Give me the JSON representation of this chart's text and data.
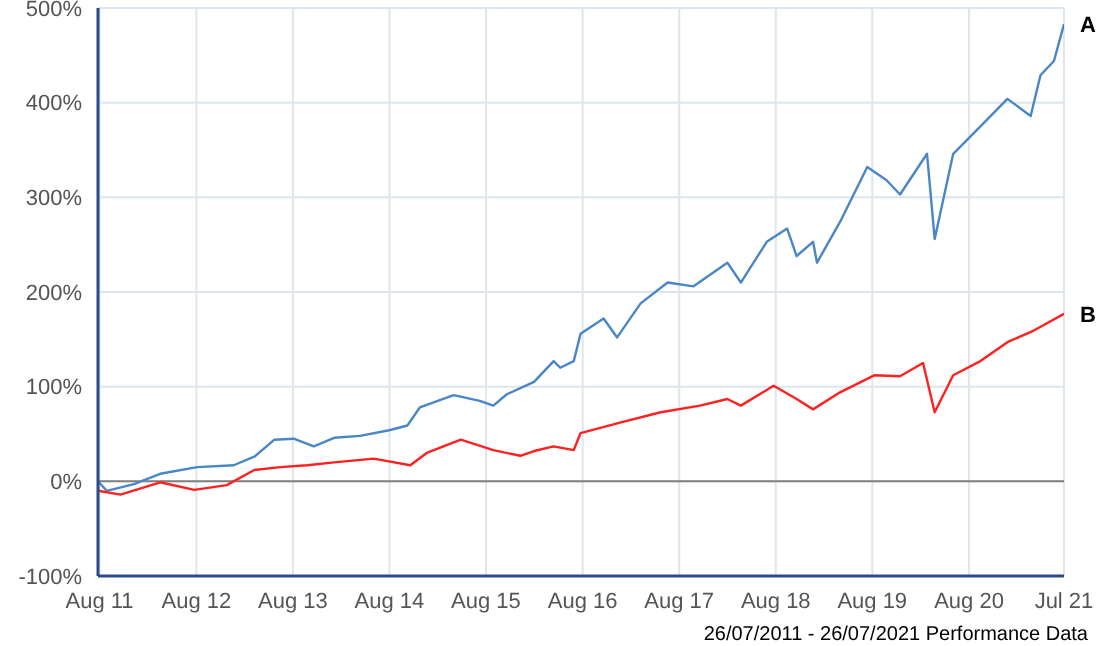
{
  "chart_data": {
    "type": "line",
    "xlim": [
      "2011-07-26",
      "2021-07-26"
    ],
    "xticks": [
      {
        "value": "2011-08-01",
        "label": "Aug 11"
      },
      {
        "value": "2012-08-01",
        "label": "Aug 12"
      },
      {
        "value": "2013-08-01",
        "label": "Aug 13"
      },
      {
        "value": "2014-08-01",
        "label": "Aug 14"
      },
      {
        "value": "2015-08-01",
        "label": "Aug 15"
      },
      {
        "value": "2016-08-01",
        "label": "Aug 16"
      },
      {
        "value": "2017-08-01",
        "label": "Aug 17"
      },
      {
        "value": "2018-08-01",
        "label": "Aug 18"
      },
      {
        "value": "2019-08-01",
        "label": "Aug 19"
      },
      {
        "value": "2020-08-01",
        "label": "Aug 20"
      },
      {
        "value": "2021-07-26",
        "label": "Jul 21"
      }
    ],
    "ylim": [
      -100,
      500
    ],
    "yticks": [
      {
        "value": -100,
        "label": "-100%"
      },
      {
        "value": 0,
        "label": "0%"
      },
      {
        "value": 100,
        "label": "100%"
      },
      {
        "value": 200,
        "label": "200%"
      },
      {
        "value": 300,
        "label": "300%"
      },
      {
        "value": 400,
        "label": "400%"
      },
      {
        "value": 500,
        "label": "500%"
      }
    ],
    "grid": true,
    "marker": "none",
    "line_style": "solid",
    "ref_lines": [
      {
        "axis": "y",
        "value": 0,
        "color": "#808080"
      }
    ],
    "annotations": [
      "26/07/2011 - 26/07/2021 Performance Data"
    ],
    "series": [
      {
        "name": "A",
        "color": "#4a86c5",
        "x": [
          "2011-07-26",
          "2011-08-28",
          "2011-12-09",
          "2012-03-17",
          "2012-08-04",
          "2012-12-20",
          "2013-03-08",
          "2013-05-23",
          "2013-08-04",
          "2013-10-19",
          "2014-01-04",
          "2014-04-12",
          "2014-07-31",
          "2014-10-08",
          "2014-11-24",
          "2015-04-01",
          "2015-07-09",
          "2015-08-29",
          "2015-10-19",
          "2016-01-30",
          "2016-04-13",
          "2016-05-08",
          "2016-06-28",
          "2016-07-24",
          "2016-10-19",
          "2016-12-09",
          "2017-03-08",
          "2017-06-18",
          "2017-09-24",
          "2018-01-30",
          "2018-03-22",
          "2018-06-28",
          "2018-09-13",
          "2018-10-19",
          "2018-12-20",
          "2019-01-04",
          "2019-04-01",
          "2019-07-13",
          "2019-09-24",
          "2019-11-14",
          "2020-02-24",
          "2020-03-24",
          "2020-06-02",
          "2020-09-13",
          "2020-12-24",
          "2021-03-22",
          "2021-04-28",
          "2021-06-18",
          "2021-07-26"
        ],
        "values": [
          0,
          -10,
          -3,
          8,
          15,
          17,
          26,
          44,
          45,
          37,
          46,
          48,
          54,
          59,
          78,
          91,
          85,
          80,
          92,
          105,
          127,
          120,
          127,
          156,
          172,
          152,
          188,
          210,
          206,
          231,
          210,
          253,
          267,
          238,
          253,
          231,
          274,
          332,
          318,
          303,
          346,
          256,
          346,
          375,
          404,
          386,
          429,
          444,
          483
        ]
      },
      {
        "name": "B",
        "color": "#ff2020",
        "x": [
          "2011-07-26",
          "2011-10-19",
          "2012-03-17",
          "2012-07-24",
          "2012-11-24",
          "2013-03-08",
          "2013-06-14",
          "2013-09-24",
          "2014-01-04",
          "2014-06-03",
          "2014-10-19",
          "2014-12-20",
          "2015-04-28",
          "2015-08-29",
          "2015-12-09",
          "2016-01-30",
          "2016-04-13",
          "2016-06-28",
          "2016-07-24",
          "2016-12-20",
          "2017-05-23",
          "2017-10-19",
          "2018-01-30",
          "2018-03-22",
          "2018-07-24",
          "2018-10-19",
          "2018-12-20",
          "2019-04-01",
          "2019-08-08",
          "2019-11-14",
          "2020-02-09",
          "2020-03-24",
          "2020-06-02",
          "2020-09-13",
          "2020-12-24",
          "2021-04-01",
          "2021-07-26"
        ],
        "values": [
          -10,
          -14,
          -1,
          -9,
          -4,
          12,
          15,
          17,
          20,
          24,
          17,
          30,
          44,
          33,
          27,
          32,
          37,
          33,
          51,
          62,
          73,
          80,
          87,
          80,
          101,
          87,
          76,
          94,
          112,
          111,
          125,
          73,
          112,
          127,
          147,
          159,
          177
        ]
      }
    ]
  }
}
